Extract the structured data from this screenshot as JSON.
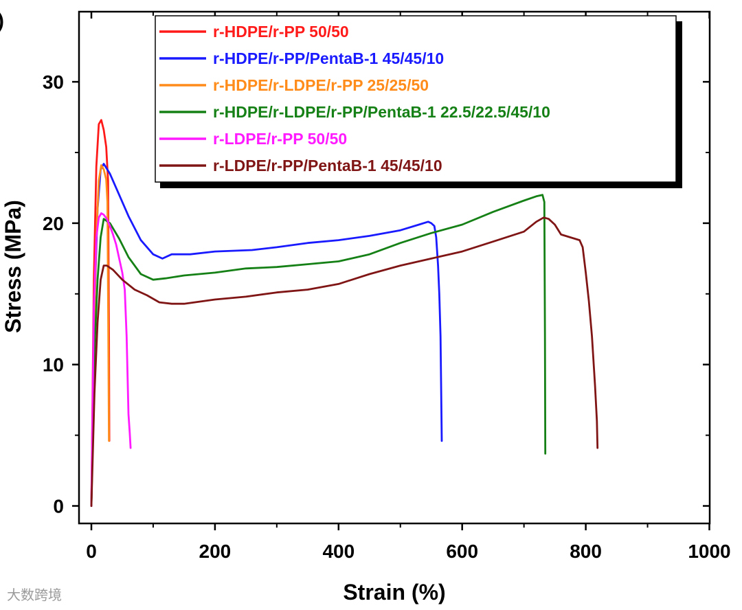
{
  "panel_label": ")",
  "watermark": "大数跨境",
  "chart_data": {
    "type": "line",
    "title": "",
    "xlabel": "Strain (%)",
    "ylabel": "Stress (MPa)",
    "xlim": [
      -20,
      1000
    ],
    "ylim": [
      -1,
      35
    ],
    "xticks": [
      0,
      200,
      400,
      600,
      800,
      1000
    ],
    "yticks": [
      0,
      10,
      20,
      30
    ],
    "grid": false,
    "legend_position": "top-right",
    "series": [
      {
        "name": "r-HDPE/r-PP 50/50",
        "color": "#ff1a1a",
        "x": [
          0,
          4,
          8,
          12,
          16,
          20,
          24,
          27,
          28.5,
          29
        ],
        "y": [
          0,
          16,
          24,
          27,
          27.3,
          26.6,
          25.4,
          23,
          12,
          4.6
        ]
      },
      {
        "name": "r-HDPE/r-PP/PentaB-1 45/45/10",
        "color": "#1a1aff",
        "x": [
          0,
          5,
          10,
          15,
          20,
          30,
          45,
          60,
          80,
          100,
          115,
          130,
          160,
          200,
          260,
          300,
          350,
          400,
          450,
          500,
          530,
          545,
          550,
          555,
          558,
          561,
          563,
          565,
          567
        ],
        "y": [
          0,
          14,
          21,
          23.8,
          24.2,
          23.5,
          22,
          20.5,
          18.8,
          17.8,
          17.5,
          17.8,
          17.8,
          18.0,
          18.1,
          18.3,
          18.6,
          18.8,
          19.1,
          19.5,
          19.9,
          20.1,
          20.0,
          19.8,
          19.0,
          17.0,
          15.0,
          12.0,
          4.6
        ]
      },
      {
        "name": "r-HDPE/r-LDPE/r-PP 25/25/50",
        "color": "#ff8c1a",
        "x": [
          0,
          4,
          8,
          12,
          16,
          20,
          24,
          26,
          27.5,
          28.5
        ],
        "y": [
          0,
          12,
          19,
          23,
          24.1,
          23.8,
          23.1,
          21.5,
          12,
          4.6
        ]
      },
      {
        "name": "r-HDPE/r-LDPE/r-PP/PentaB-1 22.5/22.5/45/10",
        "color": "#158015",
        "x": [
          0,
          5,
          10,
          15,
          20,
          30,
          45,
          60,
          80,
          100,
          120,
          150,
          200,
          250,
          300,
          350,
          400,
          450,
          500,
          550,
          600,
          650,
          700,
          720,
          730,
          733,
          734,
          734.5
        ],
        "y": [
          0,
          11,
          16,
          19,
          20.3,
          20.0,
          18.9,
          17.6,
          16.4,
          16.0,
          16.1,
          16.3,
          16.5,
          16.8,
          16.9,
          17.1,
          17.3,
          17.8,
          18.6,
          19.3,
          19.9,
          20.8,
          21.6,
          21.9,
          22.0,
          21.5,
          12.0,
          3.7
        ]
      },
      {
        "name": "r-LDPE/r-PP 50/50",
        "color": "#ff1aff",
        "x": [
          0,
          4,
          8,
          12,
          16,
          20,
          25,
          30,
          35,
          40,
          45,
          50,
          54,
          57,
          60,
          62,
          63.5
        ],
        "y": [
          0,
          14,
          19,
          20.4,
          20.7,
          20.6,
          20.3,
          19.8,
          19.2,
          18.5,
          17.5,
          16.5,
          15.3,
          12.0,
          6.5,
          5.2,
          4.1
        ]
      },
      {
        "name": "r-LDPE/r-PP/PentaB-1 45/45/10",
        "color": "#801515",
        "x": [
          0,
          5,
          10,
          15,
          20,
          25,
          35,
          50,
          70,
          90,
          110,
          130,
          150,
          200,
          250,
          300,
          350,
          400,
          450,
          500,
          550,
          600,
          650,
          700,
          720,
          732,
          740,
          750,
          760,
          775,
          790,
          795,
          800,
          805,
          810,
          815,
          818,
          819
        ],
        "y": [
          0,
          8,
          13,
          16,
          17.0,
          17.0,
          16.7,
          16.0,
          15.3,
          14.9,
          14.4,
          14.3,
          14.3,
          14.6,
          14.8,
          15.1,
          15.3,
          15.7,
          16.4,
          17.0,
          17.5,
          18.0,
          18.7,
          19.4,
          20.1,
          20.4,
          20.3,
          19.9,
          19.2,
          19.0,
          18.8,
          18.3,
          16.5,
          14.5,
          12.0,
          8.5,
          6.0,
          4.1
        ]
      }
    ]
  }
}
